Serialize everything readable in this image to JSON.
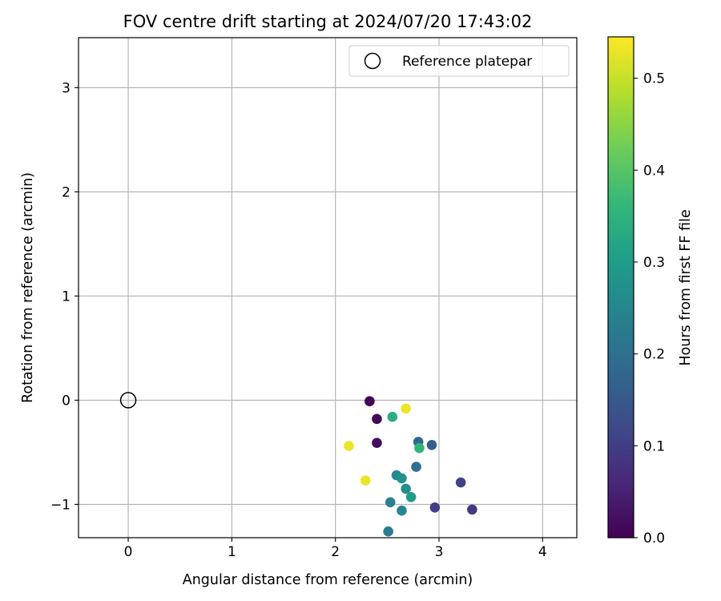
{
  "chart_data": {
    "type": "scatter",
    "title": "FOV centre drift starting at 2024/07/20 17:43:02",
    "xlabel": "Angular distance from reference (arcmin)",
    "ylabel": "Rotation from reference (arcmin)",
    "xlim": [
      -0.48,
      4.33
    ],
    "ylim": [
      -1.32,
      3.48
    ],
    "xticks": [
      0,
      1,
      2,
      3,
      4
    ],
    "yticks": [
      -1,
      0,
      1,
      2,
      3
    ],
    "grid": true,
    "legend": {
      "position": "top-right",
      "entries": [
        "Reference platepar"
      ]
    },
    "reference": {
      "x": 0,
      "y": 0,
      "marker": "open-circle",
      "color": "#000000"
    },
    "colorbar": {
      "label": "Hours from first FF file",
      "colormap": "viridis",
      "range": [
        0,
        0.545
      ],
      "ticks": [
        0.0,
        0.1,
        0.2,
        0.3,
        0.4,
        0.5
      ],
      "tick_labels": [
        "0.0",
        "0.1",
        "0.2",
        "0.3",
        "0.4",
        "0.5"
      ]
    },
    "points": [
      {
        "x": 2.33,
        "y": -0.01,
        "hours": 0.0
      },
      {
        "x": 2.4,
        "y": -0.18,
        "hours": 0.01
      },
      {
        "x": 2.4,
        "y": -0.41,
        "hours": 0.02
      },
      {
        "x": 3.32,
        "y": -1.05,
        "hours": 0.09
      },
      {
        "x": 2.96,
        "y": -1.03,
        "hours": 0.1
      },
      {
        "x": 3.21,
        "y": -0.79,
        "hours": 0.11
      },
      {
        "x": 2.93,
        "y": -0.43,
        "hours": 0.16
      },
      {
        "x": 2.8,
        "y": -0.4,
        "hours": 0.18
      },
      {
        "x": 2.78,
        "y": -0.64,
        "hours": 0.2
      },
      {
        "x": 2.51,
        "y": -1.26,
        "hours": 0.23
      },
      {
        "x": 2.53,
        "y": -0.98,
        "hours": 0.24
      },
      {
        "x": 2.64,
        "y": -1.06,
        "hours": 0.25
      },
      {
        "x": 2.59,
        "y": -0.72,
        "hours": 0.26
      },
      {
        "x": 2.68,
        "y": -0.85,
        "hours": 0.27
      },
      {
        "x": 2.64,
        "y": -0.75,
        "hours": 0.28
      },
      {
        "x": 2.73,
        "y": -0.93,
        "hours": 0.3
      },
      {
        "x": 2.55,
        "y": -0.16,
        "hours": 0.34
      },
      {
        "x": 2.81,
        "y": -0.46,
        "hours": 0.36
      },
      {
        "x": 2.29,
        "y": -0.77,
        "hours": 0.53
      },
      {
        "x": 2.13,
        "y": -0.44,
        "hours": 0.53
      },
      {
        "x": 2.68,
        "y": -0.08,
        "hours": 0.53
      }
    ]
  }
}
